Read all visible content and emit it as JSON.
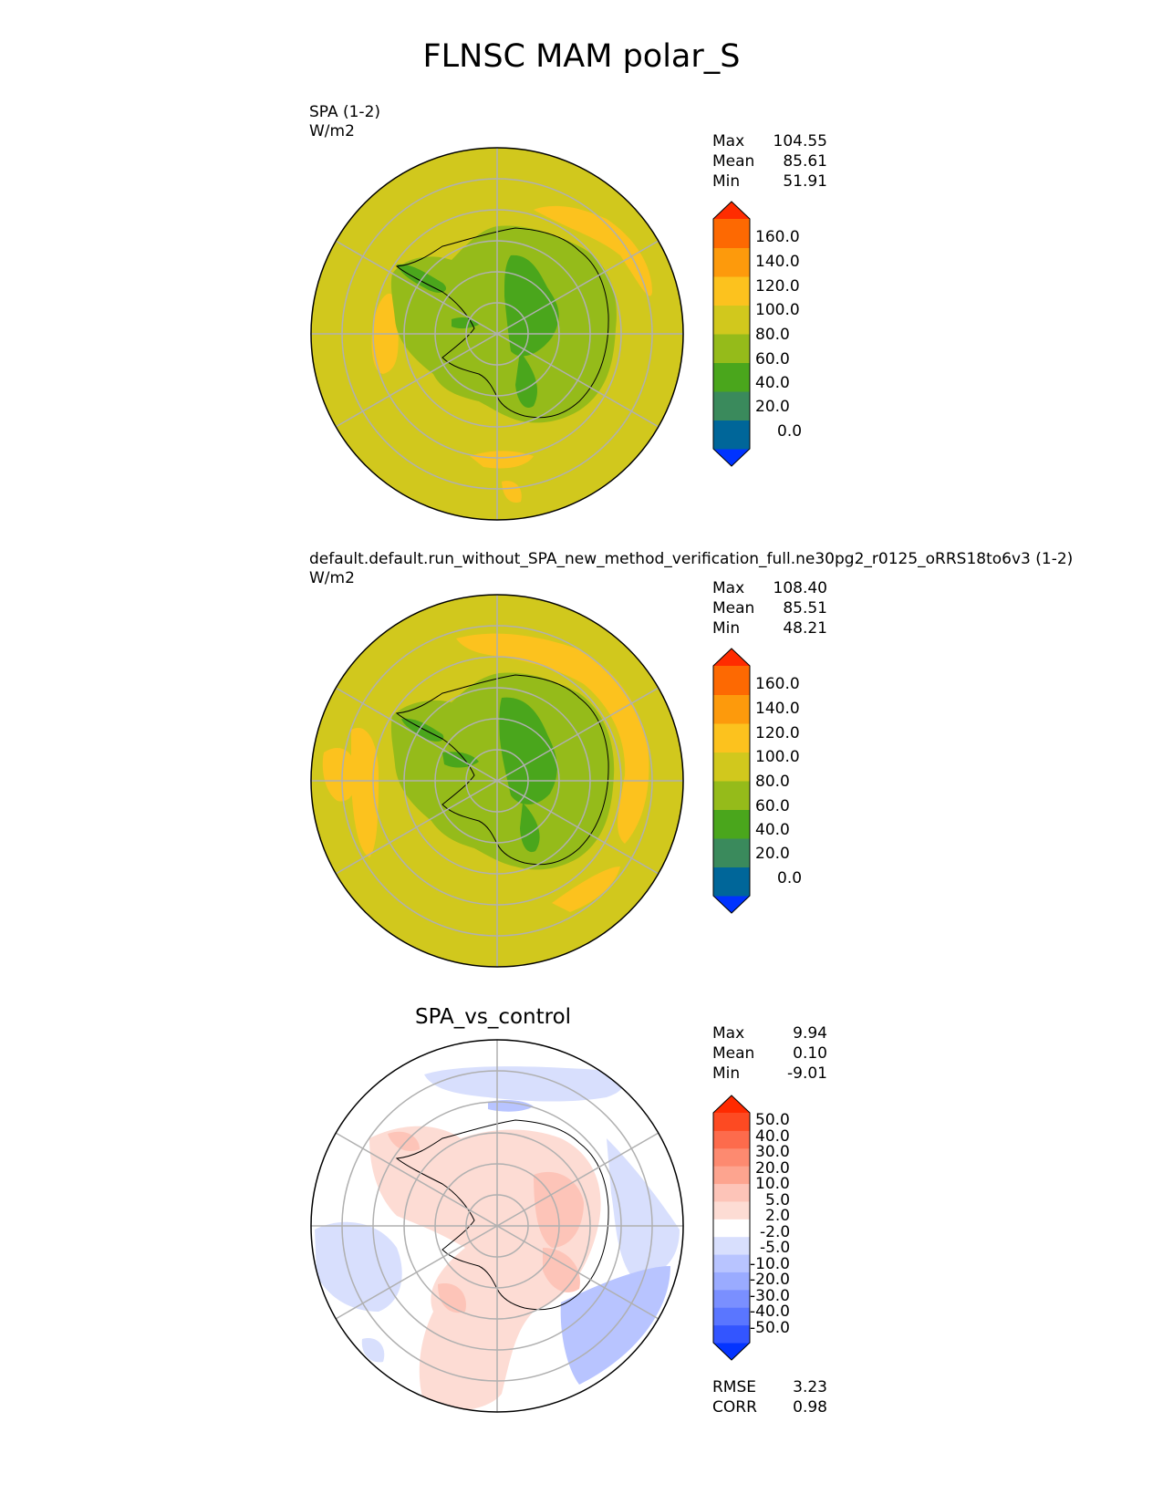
{
  "figure": {
    "title": "FLNSC MAM polar_S"
  },
  "panels": [
    {
      "title": "SPA (1-2)",
      "units": "W/m2",
      "stats": [
        {
          "label": "Max",
          "value": "104.55"
        },
        {
          "label": "Mean",
          "value": "85.61"
        },
        {
          "label": "Min",
          "value": "51.91"
        }
      ],
      "colorbar_labels": [
        "160.0",
        "140.0",
        "120.0",
        "100.0",
        "80.0",
        "60.0",
        "40.0",
        "20.0",
        "0.0"
      ]
    },
    {
      "title": "default.default.run_without_SPA_new_method_verification_full.ne30pg2_r0125_oRRS18to6v3 (1-2)",
      "units": "W/m2",
      "stats": [
        {
          "label": "Max",
          "value": "108.40"
        },
        {
          "label": "Mean",
          "value": "85.51"
        },
        {
          "label": "Min",
          "value": "48.21"
        }
      ],
      "colorbar_labels": [
        "160.0",
        "140.0",
        "120.0",
        "100.0",
        "80.0",
        "60.0",
        "40.0",
        "20.0",
        "0.0"
      ]
    },
    {
      "title": "SPA_vs_control",
      "stats": [
        {
          "label": "Max",
          "value": "9.94"
        },
        {
          "label": "Mean",
          "value": "0.10"
        },
        {
          "label": "Min",
          "value": "-9.01"
        }
      ],
      "colorbar_labels": [
        "50.0",
        "40.0",
        "30.0",
        "20.0",
        "10.0",
        "5.0",
        "2.0",
        "-2.0",
        "-5.0",
        "-10.0",
        "-20.0",
        "-30.0",
        "-40.0",
        "-50.0"
      ],
      "metrics": [
        {
          "label": "RMSE",
          "value": "3.23"
        },
        {
          "label": "CORR",
          "value": "0.98"
        }
      ]
    }
  ],
  "colors": {
    "field_bins": [
      "#0033ff",
      "#006699",
      "#3a8a5c",
      "#4aa61c",
      "#95bb1a",
      "#d1c81d",
      "#fcc21e",
      "#fd9a0c",
      "#fd6902",
      "#ff2c00"
    ],
    "diff_bins": [
      "#0434ff",
      "#3355ff",
      "#5a76ff",
      "#7a8fff",
      "#9aabff",
      "#b8c4ff",
      "#d8dffd",
      "#ffffff",
      "#fddcd4",
      "#fdc4b8",
      "#fda48f",
      "#fd8a70",
      "#fd6b4c",
      "#fd4a22",
      "#ff2a00"
    ],
    "land": "#95bb1a",
    "inner_land": "#4aa61c",
    "ocean": "#d1c81d",
    "warm_ocean": "#fcc21e"
  },
  "chart_data": [
    {
      "type": "heatmap",
      "projection": "south-polar-stereographic",
      "title": "SPA (1-2)",
      "units": "W/m2",
      "levels": [
        0,
        20,
        40,
        60,
        80,
        100,
        120,
        140,
        160
      ],
      "extend": "both",
      "max": 104.55,
      "mean": 85.61,
      "min": 51.91
    },
    {
      "type": "heatmap",
      "projection": "south-polar-stereographic",
      "title": "default.default.run_without_SPA_new_method_verification_full.ne30pg2_r0125_oRRS18to6v3 (1-2)",
      "units": "W/m2",
      "levels": [
        0,
        20,
        40,
        60,
        80,
        100,
        120,
        140,
        160
      ],
      "extend": "both",
      "max": 108.4,
      "mean": 85.51,
      "min": 48.21
    },
    {
      "type": "heatmap",
      "projection": "south-polar-stereographic",
      "title": "SPA_vs_control",
      "levels": [
        -50,
        -40,
        -30,
        -20,
        -10,
        -5,
        -2,
        2,
        5,
        10,
        20,
        30,
        40,
        50
      ],
      "extend": "both",
      "max": 9.94,
      "mean": 0.1,
      "min": -9.01,
      "rmse": 3.23,
      "corr": 0.98
    }
  ]
}
